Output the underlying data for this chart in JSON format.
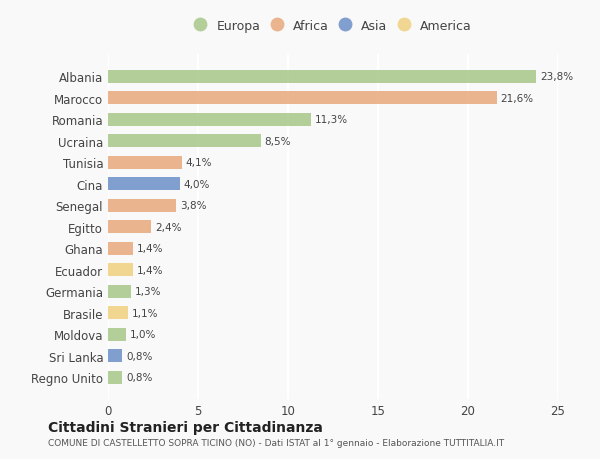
{
  "countries": [
    "Albania",
    "Marocco",
    "Romania",
    "Ucraina",
    "Tunisia",
    "Cina",
    "Senegal",
    "Egitto",
    "Ghana",
    "Ecuador",
    "Germania",
    "Brasile",
    "Moldova",
    "Sri Lanka",
    "Regno Unito"
  ],
  "values": [
    23.8,
    21.6,
    11.3,
    8.5,
    4.1,
    4.0,
    3.8,
    2.4,
    1.4,
    1.4,
    1.3,
    1.1,
    1.0,
    0.8,
    0.8
  ],
  "labels": [
    "23,8%",
    "21,6%",
    "11,3%",
    "8,5%",
    "4,1%",
    "4,0%",
    "3,8%",
    "2,4%",
    "1,4%",
    "1,4%",
    "1,3%",
    "1,1%",
    "1,0%",
    "0,8%",
    "0,8%"
  ],
  "continents": [
    "Europa",
    "Africa",
    "Europa",
    "Europa",
    "Africa",
    "Asia",
    "Africa",
    "Africa",
    "Africa",
    "America",
    "Europa",
    "America",
    "Europa",
    "Asia",
    "Europa"
  ],
  "colors": {
    "Europa": "#a8c78a",
    "Africa": "#e8a87c",
    "Asia": "#6b8ec7",
    "America": "#f0d080"
  },
  "legend_order": [
    "Europa",
    "Africa",
    "Asia",
    "America"
  ],
  "title": "Cittadini Stranieri per Cittadinanza",
  "subtitle": "COMUNE DI CASTELLETTO SOPRA TICINO (NO) - Dati ISTAT al 1° gennaio - Elaborazione TUTTITALIA.IT",
  "xlim": [
    0,
    25
  ],
  "xticks": [
    0,
    5,
    10,
    15,
    20,
    25
  ],
  "background_color": "#f9f9f9",
  "grid_color": "#ffffff",
  "bar_alpha": 0.85
}
